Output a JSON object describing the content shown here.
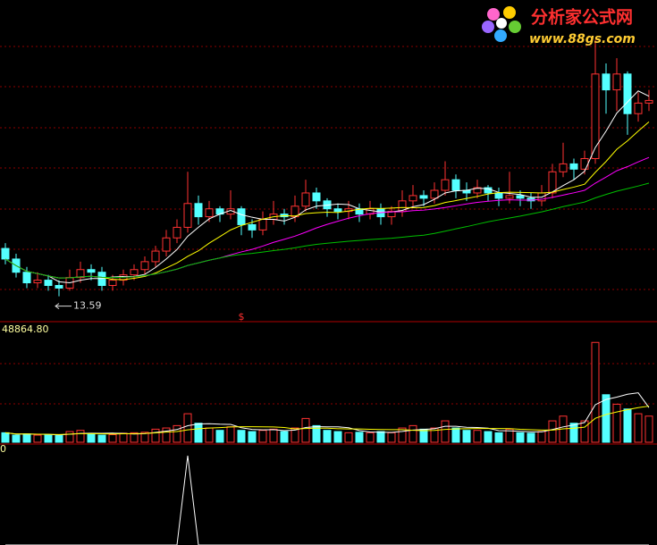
{
  "chart_data": [
    {
      "type": "candlestick",
      "ylim": [
        12.8,
        24.8
      ],
      "colors": {
        "up": "#ff3232",
        "down": "#54ffff"
      },
      "ma_periods": [
        5,
        10,
        20,
        40
      ],
      "ma_colors": [
        "#ffffff",
        "#ffff00",
        "#ff00ff",
        "#00c000"
      ],
      "marker": "$",
      "open": [
        15.4,
        15.0,
        14.5,
        14.1,
        14.2,
        14.0,
        13.9,
        14.3,
        14.6,
        14.5,
        14.0,
        14.2,
        14.4,
        14.6,
        14.9,
        15.3,
        15.8,
        16.2,
        17.1,
        16.6,
        16.9,
        16.7,
        16.9,
        16.3,
        16.1,
        16.5,
        16.7,
        16.6,
        17.0,
        17.5,
        17.2,
        16.9,
        16.8,
        16.9,
        16.7,
        16.9,
        16.6,
        16.8,
        17.2,
        17.4,
        17.3,
        17.6,
        18.0,
        17.6,
        17.5,
        17.7,
        17.5,
        17.3,
        17.4,
        17.3,
        17.2,
        17.5,
        18.3,
        18.6,
        18.4,
        18.8,
        22.0,
        21.4,
        22.0,
        20.5,
        20.9
      ],
      "high": [
        15.6,
        15.2,
        14.7,
        14.5,
        14.4,
        14.2,
        14.6,
        14.9,
        14.8,
        14.7,
        14.4,
        14.6,
        14.8,
        15.1,
        15.5,
        16.1,
        16.5,
        18.3,
        17.4,
        17.2,
        17.0,
        17.6,
        17.0,
        16.5,
        16.8,
        17.2,
        16.9,
        17.4,
        18.0,
        17.7,
        17.3,
        17.1,
        17.2,
        17.1,
        17.2,
        17.1,
        17.0,
        17.6,
        17.8,
        17.6,
        17.9,
        18.7,
        18.2,
        17.9,
        18.0,
        17.8,
        17.7,
        18.3,
        17.6,
        17.5,
        17.8,
        18.6,
        19.4,
        18.8,
        19.1,
        23.3,
        22.4,
        22.6,
        22.1,
        21.3,
        21.4
      ],
      "low": [
        14.8,
        14.3,
        13.9,
        13.9,
        13.8,
        13.59,
        13.8,
        14.1,
        14.2,
        13.8,
        13.8,
        14.0,
        14.2,
        14.4,
        14.7,
        15.1,
        15.6,
        16.0,
        16.3,
        16.4,
        16.4,
        16.5,
        15.9,
        15.8,
        15.9,
        16.3,
        16.3,
        16.4,
        16.8,
        16.9,
        16.6,
        16.5,
        16.5,
        16.4,
        16.5,
        16.3,
        16.3,
        16.6,
        17.0,
        17.0,
        17.1,
        17.4,
        17.3,
        17.2,
        17.3,
        17.2,
        17.0,
        17.1,
        17.0,
        16.9,
        17.0,
        17.3,
        18.1,
        18.0,
        18.2,
        18.6,
        20.5,
        20.6,
        19.7,
        20.2,
        20.6
      ],
      "close": [
        15.0,
        14.5,
        14.1,
        14.2,
        14.0,
        13.9,
        14.3,
        14.6,
        14.5,
        14.0,
        14.2,
        14.4,
        14.6,
        14.9,
        15.3,
        15.8,
        16.2,
        17.1,
        16.6,
        16.9,
        16.7,
        16.9,
        16.3,
        16.1,
        16.5,
        16.7,
        16.6,
        17.0,
        17.5,
        17.2,
        16.9,
        16.8,
        16.9,
        16.7,
        16.9,
        16.6,
        16.8,
        17.2,
        17.4,
        17.3,
        17.6,
        18.0,
        17.6,
        17.5,
        17.7,
        17.5,
        17.3,
        17.4,
        17.3,
        17.2,
        17.5,
        18.3,
        18.6,
        18.4,
        18.8,
        22.0,
        21.4,
        22.0,
        20.5,
        20.9,
        21.0
      ]
    },
    {
      "type": "bar",
      "ylim": [
        0,
        48864.8
      ],
      "yticks": [
        {
          "value": 48864.8,
          "label": "48864.80"
        }
      ],
      "ma_periods": [
        5,
        10
      ],
      "ma_colors": [
        "#ffffff",
        "#ffff00"
      ],
      "values": [
        4000,
        3000,
        3500,
        3000,
        3200,
        2800,
        4500,
        5000,
        3500,
        3000,
        3200,
        3800,
        4000,
        4200,
        5500,
        6000,
        7000,
        12000,
        8000,
        6000,
        5000,
        6500,
        5000,
        4500,
        5000,
        5500,
        4500,
        6000,
        10000,
        7000,
        5000,
        4500,
        4000,
        4200,
        4000,
        4500,
        4000,
        6000,
        7000,
        5500,
        6000,
        9000,
        6000,
        5000,
        5000,
        4500,
        4000,
        5500,
        4000,
        3800,
        4500,
        9000,
        11000,
        8000,
        9000,
        42000,
        20000,
        16000,
        14000,
        12000,
        11000
      ]
    },
    {
      "type": "line",
      "ylim": [
        0,
        1.1
      ],
      "color": "#ffffff",
      "current_value": 0,
      "values": [
        0,
        0,
        0,
        0,
        0,
        0,
        0,
        0,
        0,
        0,
        0,
        0,
        0,
        0,
        0,
        0,
        0,
        1,
        0,
        0,
        0,
        0,
        0,
        0,
        0,
        0,
        0,
        0,
        0,
        0,
        0,
        0,
        0,
        0,
        0,
        0,
        0,
        0,
        0,
        0,
        0,
        0,
        0,
        0,
        0,
        0,
        0,
        0,
        0,
        0,
        0,
        0,
        0,
        0,
        0,
        0,
        0,
        0,
        0,
        0,
        0
      ]
    }
  ],
  "logo": {
    "title": "分析家公式网",
    "url": "www.88gs.com"
  }
}
